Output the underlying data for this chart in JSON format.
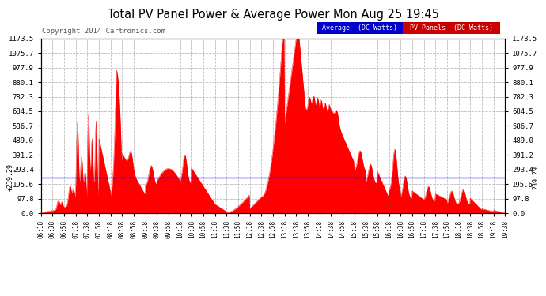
{
  "title": "Total PV Panel Power & Average Power Mon Aug 25 19:45",
  "copyright": "Copyright 2014 Cartronics.com",
  "avg_label": "Average  (DC Watts)",
  "pv_label": "PV Panels  (DC Watts)",
  "avg_value": 239.29,
  "ymax": 1173.5,
  "ymin": 0.0,
  "yticks": [
    0.0,
    97.8,
    195.6,
    293.4,
    391.2,
    489.0,
    586.7,
    684.5,
    782.3,
    880.1,
    977.9,
    1075.7,
    1173.5
  ],
  "ytick_labels": [
    "0.0",
    "97.8",
    "195.6",
    "293.4",
    "391.2",
    "489.0",
    "586.7",
    "684.5",
    "782.3",
    "880.1",
    "977.9",
    "1075.7",
    "1173.5"
  ],
  "bg_color": "#ffffff",
  "fill_color": "#ff0000",
  "avg_line_color": "#0000ff",
  "grid_color": "#bbbbbb",
  "x_tick_labels": [
    "06:18",
    "06:38",
    "06:58",
    "07:18",
    "07:38",
    "07:58",
    "08:18",
    "08:38",
    "08:58",
    "09:18",
    "09:38",
    "09:58",
    "10:18",
    "10:38",
    "10:58",
    "11:18",
    "11:38",
    "11:58",
    "12:18",
    "12:38",
    "12:58",
    "13:18",
    "13:38",
    "13:58",
    "14:18",
    "14:38",
    "14:58",
    "15:18",
    "15:38",
    "15:58",
    "16:18",
    "16:38",
    "16:58",
    "17:18",
    "17:38",
    "17:58",
    "18:18",
    "18:38",
    "18:58",
    "19:18",
    "19:38"
  ],
  "legend_avg_color": "#0000cc",
  "legend_pv_color": "#cc0000"
}
